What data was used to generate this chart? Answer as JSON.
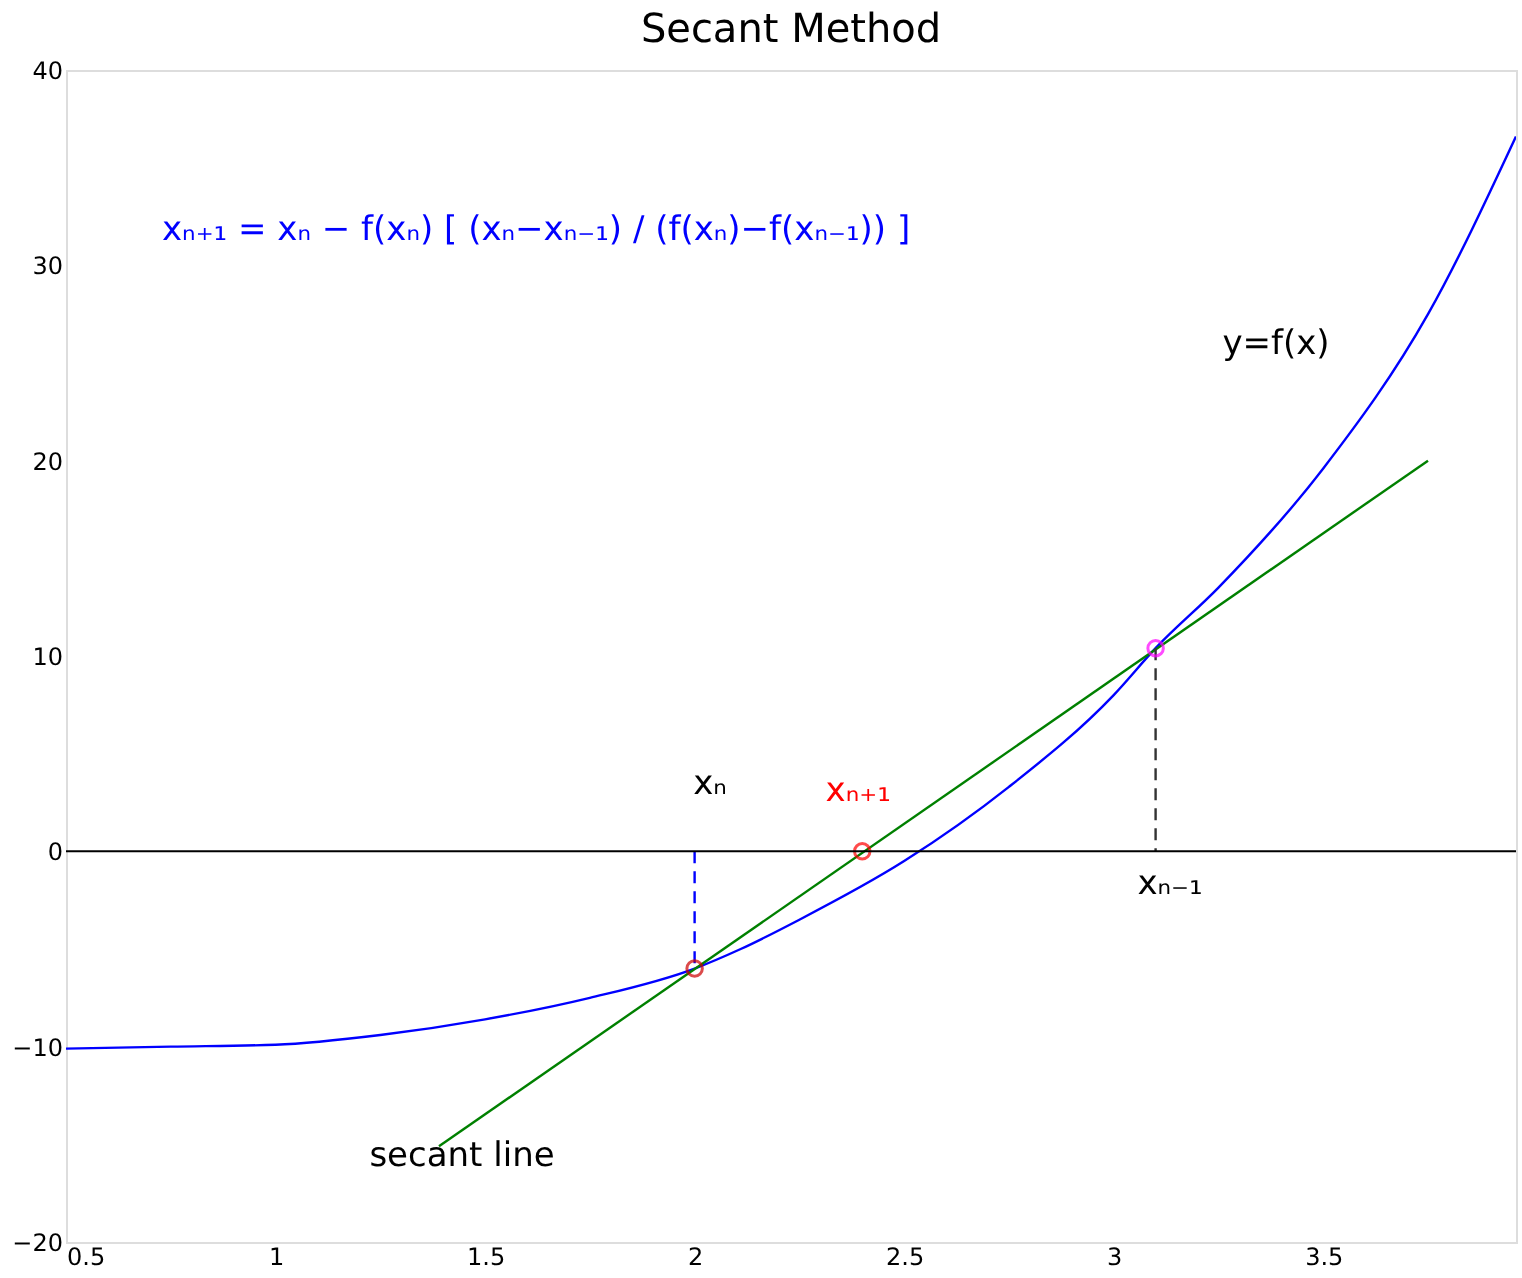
{
  "chart_data": {
    "type": "line",
    "title": "Secant Method",
    "xlim": [
      0.5,
      3.96
    ],
    "ylim": [
      -20,
      40
    ],
    "xticks": [
      0.5,
      1,
      1.5,
      2,
      2.5,
      3,
      3.5
    ],
    "yticks": [
      -20,
      -10,
      0,
      10,
      20,
      30,
      40
    ],
    "grid": false,
    "series": [
      {
        "color": "#0000ff",
        "x": [
          0.5,
          0.75,
          1.0,
          1.25,
          1.5,
          1.75,
          2.0,
          2.11,
          2.25,
          2.5,
          2.75,
          3.0,
          3.1,
          3.25,
          3.5,
          3.75,
          3.96
        ],
        "values": [
          -10.1,
          -10.0,
          -9.9,
          -9.4,
          -8.6,
          -7.5,
          -6.0,
          -5.0,
          -3.5,
          -0.5,
          3.3,
          8.0,
          10.4,
          13.5,
          19.6,
          27.5,
          36.6
        ]
      },
      {
        "color": "#008000",
        "x": [
          1.39,
          3.75
        ],
        "values": [
          -15.1,
          20
        ]
      },
      {
        "color": "#0000ff",
        "line_style": "dashed",
        "x": [
          2,
          2
        ],
        "values": [
          0,
          -6
        ]
      },
      {
        "color": "#333333",
        "line_style": "dashed",
        "x": [
          3.1,
          3.1
        ],
        "values": [
          10.4,
          0
        ]
      },
      {
        "type": "scatter",
        "marker": "circle",
        "color": "#cc0000",
        "x": [
          2
        ],
        "values": [
          -6
        ]
      },
      {
        "type": "scatter",
        "marker": "circle",
        "color": "#ff0000",
        "name": "xₙ₊₁",
        "x": [
          2.4
        ],
        "values": [
          0
        ]
      },
      {
        "type": "scatter",
        "marker": "circle",
        "color": "#ff00ff",
        "x": [
          3.1
        ],
        "values": [
          10.4
        ]
      }
    ],
    "ref_lines": [
      {
        "axis": "y",
        "value": 0,
        "color": "#000000"
      }
    ],
    "annotations": [
      "xₙ₊₁ = xₙ − f(xₙ) [ (xₙ−xₙ₋₁) / (f(xₙ)−f(xₙ₋₁)) ]",
      "y=f(x)",
      "xₙ",
      "xₙ₋₁",
      "secant line"
    ]
  }
}
